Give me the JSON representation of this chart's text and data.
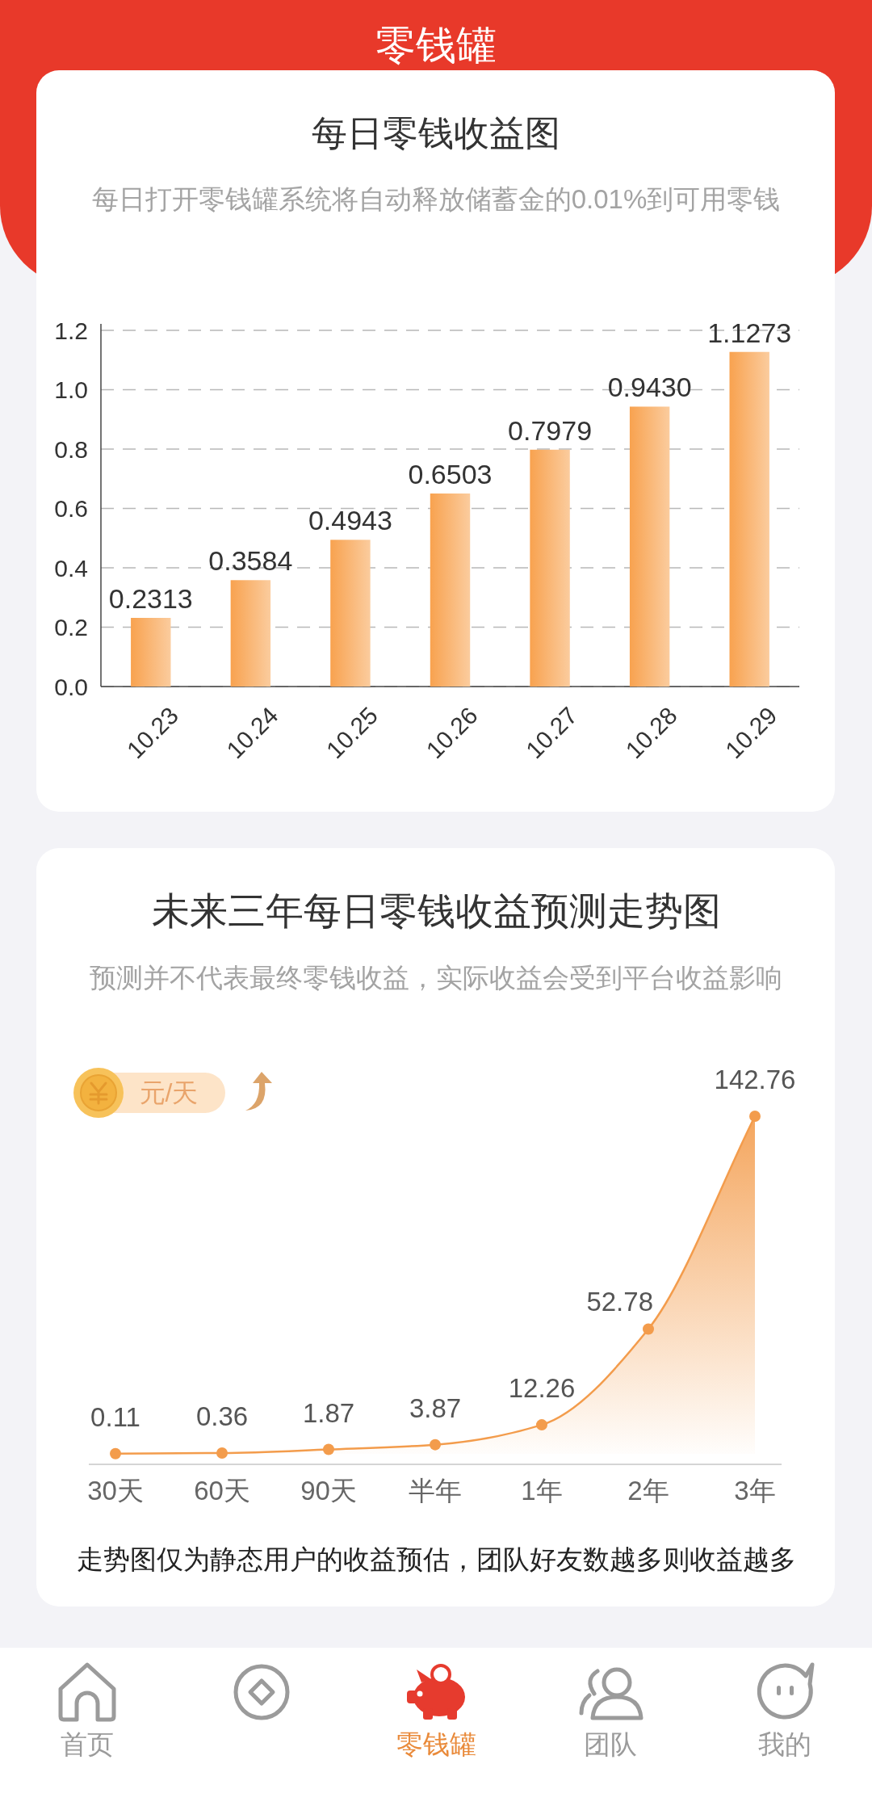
{
  "chart_data": [
    {
      "type": "other",
      "title": "零钱罐"
    },
    {
      "type": "bar",
      "title": "每日零钱收益图",
      "subtitle": "每日打开零钱罐系统将自动释放储蓄金的0.01%到可用零钱",
      "categories": [
        "10.23",
        "10.24",
        "10.25",
        "10.26",
        "10.27",
        "10.28",
        "10.29"
      ],
      "values": [
        0.2313,
        0.3584,
        0.4943,
        0.6503,
        0.7979,
        0.943,
        1.1273
      ],
      "value_labels": [
        "0.2313",
        "0.3584",
        "0.4943",
        "0.6503",
        "0.7979",
        "0.9430",
        "1.1273"
      ],
      "color": "#f8a24f",
      "ylim": [
        0,
        1.2
      ],
      "yticks": [
        {
          "value": 0,
          "label": "0.0"
        },
        0.2,
        0.4,
        0.6,
        0.8,
        {
          "value": 1,
          "label": "1.0"
        },
        1.2
      ],
      "grid": "y"
    },
    {
      "type": "area",
      "title": "未来三年每日零钱收益预测走势图",
      "subtitle": "预测并不代表最终零钱收益，实际收益会受到平台收益影响",
      "ylabel": "元/天",
      "categories": [
        "30天",
        "60天",
        "90天",
        "半年",
        "1年",
        "2年",
        "3年"
      ],
      "values": [
        0.11,
        0.36,
        1.87,
        3.87,
        12.26,
        52.78,
        142.76
      ],
      "color": "#f39c4c",
      "marker": "circle",
      "data_labels": true,
      "tick_labels": "x",
      "annotations": [
        "走势图仅为静态用户的收益预估，团队好友数越多则收益越多"
      ]
    },
    {
      "type": "other",
      "categories": [
        "首页",
        null,
        "零钱罐",
        "团队",
        "我的"
      ],
      "colors": [
        "#9b9b9b",
        "#9b9b9b",
        "#e98a3a",
        "#9b9b9b",
        "#9b9b9b"
      ]
    }
  ]
}
